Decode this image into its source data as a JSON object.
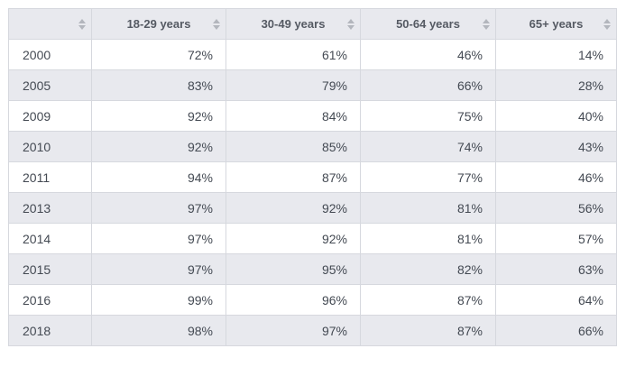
{
  "table": {
    "headers": [
      "",
      "18-29 years",
      "30-49 years",
      "50-64 years",
      "65+ years"
    ],
    "icons": {
      "sort": "sort-arrows-icon"
    },
    "colors": {
      "header_bg": "#e8e9ee",
      "row_alt_bg": "#e8e9ee",
      "border": "#d6d8de",
      "text": "#444a53"
    },
    "rows": [
      [
        "2000",
        "72%",
        "61%",
        "46%",
        "14%"
      ],
      [
        "2005",
        "83%",
        "79%",
        "66%",
        "28%"
      ],
      [
        "2009",
        "92%",
        "84%",
        "75%",
        "40%"
      ],
      [
        "2010",
        "92%",
        "85%",
        "74%",
        "43%"
      ],
      [
        "2011",
        "94%",
        "87%",
        "77%",
        "46%"
      ],
      [
        "2013",
        "97%",
        "92%",
        "81%",
        "56%"
      ],
      [
        "2014",
        "97%",
        "92%",
        "81%",
        "57%"
      ],
      [
        "2015",
        "97%",
        "95%",
        "82%",
        "63%"
      ],
      [
        "2016",
        "99%",
        "96%",
        "87%",
        "64%"
      ],
      [
        "2018",
        "98%",
        "97%",
        "87%",
        "66%"
      ]
    ]
  }
}
